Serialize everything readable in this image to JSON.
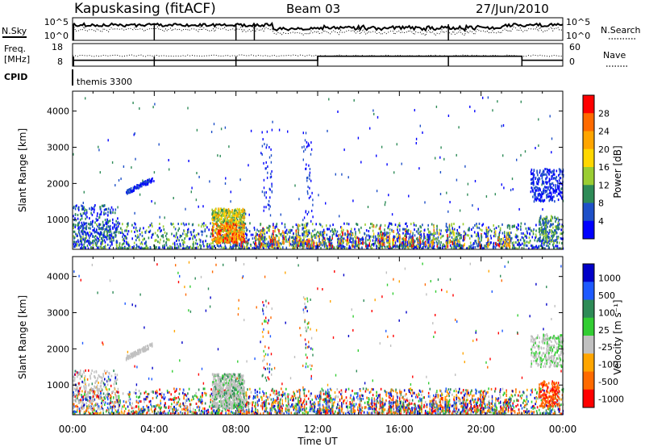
{
  "header": {
    "station": "Kapuskasing (fitACF)",
    "beam": "Beam 03",
    "date": "27/Jun/2010"
  },
  "status_panels": {
    "nsky_label": "N.Sky",
    "nsky_ticks": [
      "10^5",
      "10^0"
    ],
    "nsearch_label": "N.Search",
    "nsearch_ticks": [
      "10^5",
      "10^0"
    ],
    "freq_label_1": "Freq.",
    "freq_label_2": "[MHz]",
    "freq_ticks": [
      "18",
      "8"
    ],
    "nave_label": "Nave",
    "nave_ticks": [
      "60",
      "0"
    ],
    "cpid_label": "CPID",
    "cpid_value": "themis 3300",
    "freq_step_hours": [
      0,
      12
    ],
    "freq_step_levels_mhz": [
      10.6,
      12.4,
      10.6
    ],
    "freq_step_change_hours": [
      12,
      22
    ]
  },
  "chart_data": [
    {
      "type": "heatmap",
      "name": "power",
      "ylabel": "Slant Range [km]",
      "xlabel": "",
      "xlim": [
        0,
        24
      ],
      "ylim": [
        180,
        4550
      ],
      "yticks": [
        1000,
        2000,
        3000,
        4000
      ],
      "colorbar": {
        "label": "Power [dB]",
        "ticks": [
          "28",
          "24",
          "20",
          "16",
          "12",
          "8",
          "4"
        ],
        "colors": [
          "#ff0000",
          "#ff6a00",
          "#ffa500",
          "#ffd700",
          "#9acd32",
          "#2e8b57",
          "#1e50c8",
          "#0000ff"
        ]
      }
    },
    {
      "type": "heatmap",
      "name": "velocity",
      "ylabel": "Slant Range [km]",
      "xlabel": "Time UT",
      "xlim": [
        0,
        24
      ],
      "ylim": [
        180,
        4550
      ],
      "yticks": [
        1000,
        2000,
        3000,
        4000
      ],
      "xticks": [
        "00:00",
        "04:00",
        "08:00",
        "12:00",
        "16:00",
        "20:00",
        "00:00"
      ],
      "colorbar": {
        "label": "Velocity [m s⁻¹]",
        "ticks": [
          "1000",
          "500",
          "100",
          "25",
          "-25",
          "-100",
          "-500",
          "-1000"
        ],
        "colors": [
          "#0000c8",
          "#1e5aff",
          "#2e8b57",
          "#32cd32",
          "#c0c0c0",
          "#ffa500",
          "#ff6a00",
          "#ff0000"
        ]
      }
    }
  ]
}
